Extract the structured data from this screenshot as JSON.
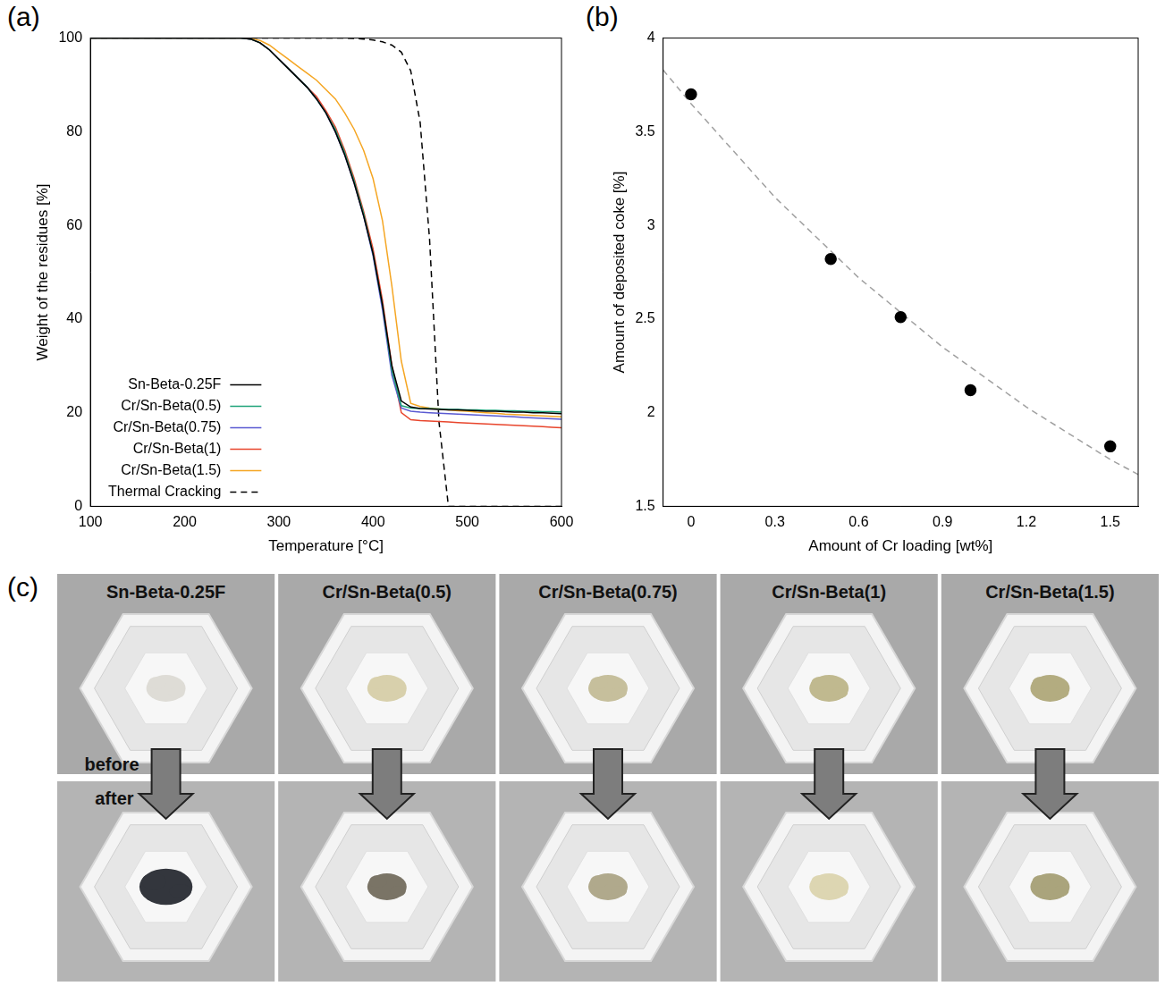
{
  "panel_labels": [
    "(a)",
    "(b)",
    "(c)"
  ],
  "chart_data": [
    {
      "type": "line",
      "x_label": "Temperature [°C]",
      "y_label": "Weight of the residues [%]",
      "x": [
        100,
        110,
        120,
        130,
        140,
        150,
        160,
        170,
        180,
        190,
        200,
        210,
        220,
        230,
        240,
        250,
        260,
        270,
        280,
        290,
        300,
        310,
        320,
        330,
        340,
        350,
        360,
        370,
        380,
        390,
        400,
        410,
        420,
        430,
        440,
        450,
        460,
        470,
        480,
        490,
        500,
        510,
        520,
        530,
        540,
        550,
        560,
        570,
        580,
        590,
        600
      ],
      "xlim": [
        100,
        600
      ],
      "xticks": [
        100,
        200,
        300,
        400,
        500,
        600
      ],
      "ylim": [
        0,
        100
      ],
      "yticks": [
        0,
        20,
        40,
        60,
        80,
        100
      ],
      "grid": false,
      "legend": "lower left",
      "series": [
        {
          "name": "Sn-Beta-0.25F",
          "color": "#000000",
          "line_style": "solid",
          "values": [
            100,
            100,
            100,
            100,
            100,
            100,
            100,
            100,
            100,
            100,
            100,
            100,
            100,
            100,
            100,
            100,
            100,
            99.8,
            99,
            97.5,
            95.5,
            93.5,
            91.5,
            89.5,
            87,
            84,
            80,
            75,
            69,
            62,
            54,
            43,
            30,
            22.5,
            21.2,
            20.9,
            20.8,
            20.7,
            20.6,
            20.6,
            20.5,
            20.4,
            20.3,
            20.3,
            20.2,
            20.1,
            20.1,
            20.0,
            20.0,
            19.9,
            19.8
          ]
        },
        {
          "name": "Cr/Sn-Beta(0.5)",
          "color": "#1fa37a",
          "line_style": "solid",
          "values": [
            100,
            100,
            100,
            100,
            100,
            100,
            100,
            100,
            100,
            100,
            100,
            100,
            100,
            100,
            100,
            100,
            100,
            99.8,
            99,
            97.5,
            95.5,
            93.5,
            91.5,
            89.5,
            87,
            84,
            80.5,
            75.5,
            69.5,
            62.5,
            54,
            43,
            29,
            21.5,
            21,
            20.9,
            20.9,
            20.8,
            20.7,
            20.7,
            20.6,
            20.6,
            20.5,
            20.5,
            20.4,
            20.4,
            20.3,
            20.3,
            20.2,
            20.2,
            20.1
          ]
        },
        {
          "name": "Cr/Sn-Beta(0.75)",
          "color": "#5a5ad2",
          "line_style": "solid",
          "values": [
            100,
            100,
            100,
            100,
            100,
            100,
            100,
            100,
            100,
            100,
            100,
            100,
            100,
            100,
            100,
            100,
            100,
            99.8,
            99,
            97.5,
            95.5,
            93.5,
            91.5,
            89.5,
            87,
            84,
            80,
            75,
            69,
            62,
            53.5,
            42,
            28,
            21,
            20.3,
            20.1,
            20.0,
            19.9,
            19.8,
            19.7,
            19.6,
            19.5,
            19.4,
            19.3,
            19.2,
            19.1,
            19.0,
            18.9,
            18.8,
            18.7,
            18.6
          ]
        },
        {
          "name": "Cr/Sn-Beta(1)",
          "color": "#e8452c",
          "line_style": "solid",
          "values": [
            100,
            100,
            100,
            100,
            100,
            100,
            100,
            100,
            100,
            100,
            100,
            100,
            100,
            100,
            100,
            100,
            100,
            99.8,
            99,
            97.5,
            95.5,
            93.5,
            91.5,
            89.5,
            87.5,
            84.5,
            81,
            76,
            70,
            63,
            55,
            44,
            30,
            20,
            18.5,
            18.3,
            18.2,
            18.1,
            18.0,
            17.9,
            17.8,
            17.7,
            17.6,
            17.5,
            17.4,
            17.3,
            17.2,
            17.1,
            17.0,
            16.9,
            16.8
          ]
        },
        {
          "name": "Cr/Sn-Beta(1.5)",
          "color": "#f5a623",
          "line_style": "solid",
          "values": [
            100,
            100,
            100,
            100,
            100,
            100,
            100,
            100,
            100,
            100,
            100,
            100,
            100,
            100,
            100,
            100,
            100,
            99.9,
            99.5,
            98.5,
            97,
            95.5,
            94,
            92.5,
            91,
            89,
            87,
            84,
            80.5,
            76,
            70,
            61,
            47,
            31,
            22,
            21.3,
            21.0,
            20.8,
            20.6,
            20.4,
            20.3,
            20.1,
            20.0,
            19.9,
            19.7,
            19.6,
            19.5,
            19.4,
            19.3,
            19.2,
            19.1
          ]
        },
        {
          "name": "Thermal Cracking",
          "color": "#000000",
          "line_style": "dashed",
          "values": [
            100,
            100,
            100,
            100,
            100,
            100,
            100,
            100,
            100,
            100,
            100,
            100,
            100,
            100,
            100,
            100,
            100,
            100,
            100,
            100,
            100,
            100,
            100,
            100,
            100,
            100,
            100,
            100,
            99.9,
            99.8,
            99.6,
            99.2,
            98.5,
            97,
            93,
            82,
            57,
            18,
            0,
            0,
            0,
            0,
            0,
            0,
            0,
            0,
            0,
            0,
            0,
            0,
            0
          ]
        }
      ]
    },
    {
      "type": "scatter",
      "x_label": "Amount of Cr loading [wt%]",
      "y_label": "Amount of deposited coke [%]",
      "xlim": [
        -0.1,
        1.6
      ],
      "xticks": [
        0,
        0.3,
        0.6,
        0.9,
        1.2,
        1.5
      ],
      "ylim": [
        1.5,
        4
      ],
      "yticks": [
        1.5,
        2,
        2.5,
        3,
        3.5,
        4
      ],
      "grid": false,
      "series": [
        {
          "type": "scatter",
          "color": "#000000",
          "marker": "circle",
          "x": [
            0,
            0.5,
            0.75,
            1,
            1.5
          ],
          "values": [
            3.7,
            2.82,
            2.51,
            2.12,
            1.82
          ]
        },
        {
          "type": "line",
          "color": "#a0a0a0",
          "line_style": "dashed",
          "x": [
            -0.1,
            0,
            0.3,
            0.6,
            0.9,
            1.2,
            1.5,
            1.6
          ],
          "values": [
            3.83,
            3.65,
            3.15,
            2.72,
            2.35,
            2.03,
            1.75,
            1.67
          ]
        }
      ]
    }
  ],
  "photos": {
    "before": "before",
    "after": "after",
    "samples": [
      {
        "name": "Sn-Beta-0.25F",
        "before_color": "#dedcd6",
        "after_color": "#33363d"
      },
      {
        "name": "Cr/Sn-Beta(0.5)",
        "before_color": "#d8d0ac",
        "after_color": "#7a7466"
      },
      {
        "name": "Cr/Sn-Beta(0.75)",
        "before_color": "#c6bf9c",
        "after_color": "#b0a98c"
      },
      {
        "name": "Cr/Sn-Beta(1)",
        "before_color": "#c0b98f",
        "after_color": "#ddd6b2"
      },
      {
        "name": "Cr/Sn-Beta(1.5)",
        "before_color": "#b3ac80",
        "after_color": "#aaa47c"
      }
    ]
  }
}
